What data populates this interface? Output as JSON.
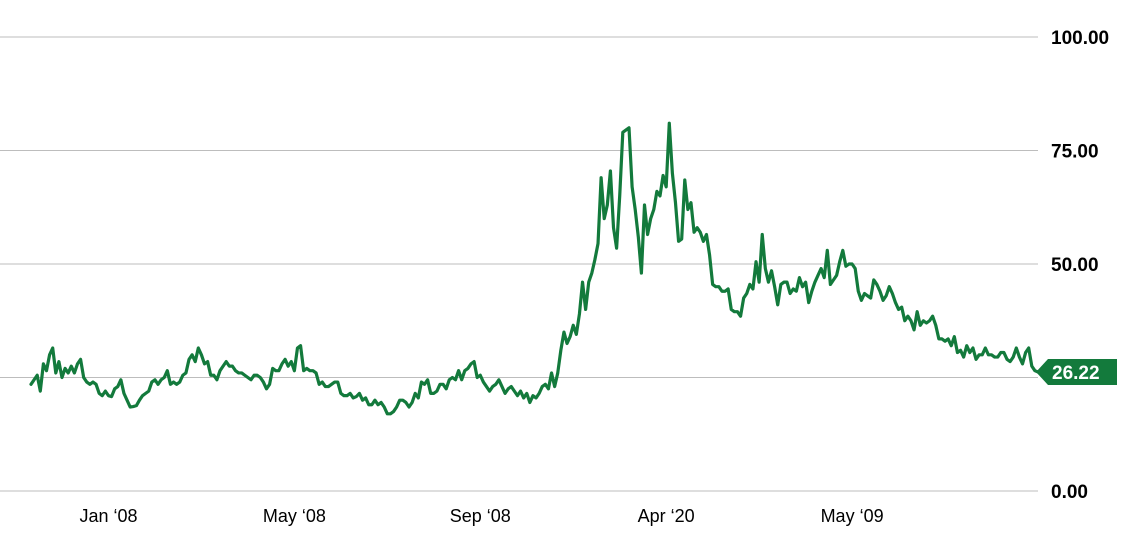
{
  "chart_data": {
    "type": "line",
    "title": "",
    "xlabel": "",
    "ylabel": "",
    "ylim": [
      0,
      100
    ],
    "grid": true,
    "y_ticks": [
      {
        "value": 100,
        "label": "100.00"
      },
      {
        "value": 75,
        "label": "75.00"
      },
      {
        "value": 50,
        "label": "50.00"
      },
      {
        "value": 0,
        "label": "0.00"
      }
    ],
    "x_ticks": [
      {
        "index": 25,
        "label": "Jan ‘08"
      },
      {
        "index": 85,
        "label": "May ‘08"
      },
      {
        "index": 145,
        "label": "Sep ‘08"
      },
      {
        "index": 205,
        "label": "Apr ‘20"
      },
      {
        "index": 265,
        "label": "May ‘09"
      }
    ],
    "last_value_label": "26.22",
    "colors": {
      "line": "#137a3c",
      "grid": "#bdbdbd",
      "badge": "#137a3c"
    },
    "series": [
      {
        "values": [
          23.5,
          24.5,
          25.5,
          22,
          28,
          26.5,
          30,
          31.5,
          26,
          28.5,
          25,
          27,
          26,
          27.5,
          26,
          28,
          29,
          25,
          24,
          23.5,
          24,
          23.5,
          21.5,
          21,
          22,
          21,
          20.8,
          22.5,
          23,
          24.5,
          21.5,
          20,
          18.5,
          18.6,
          18.8,
          20,
          21,
          21.5,
          22,
          24,
          24.5,
          23.5,
          24.5,
          25,
          26.5,
          23.5,
          24,
          23.5,
          24,
          25.5,
          26,
          29,
          30,
          28.5,
          31.5,
          30,
          28,
          28.5,
          25.5,
          25.5,
          24.5,
          26.5,
          27.5,
          28.5,
          27.5,
          27.5,
          26.5,
          26,
          26,
          25.5,
          25,
          24.5,
          25.5,
          25.5,
          25,
          24,
          22.5,
          23.5,
          27,
          26.5,
          26.5,
          28,
          29,
          27.5,
          28.5,
          26.5,
          31.5,
          32,
          26.5,
          27,
          26.5,
          26.5,
          26,
          23.5,
          24,
          23,
          23,
          23.5,
          24,
          24,
          21.5,
          21,
          21,
          21.5,
          20.5,
          20.8,
          21.5,
          20,
          20.5,
          19,
          19,
          20,
          19,
          19.5,
          18.5,
          17,
          17,
          17.5,
          18.5,
          20,
          20,
          19.5,
          18.5,
          19.5,
          21.5,
          20.5,
          24,
          23.5,
          24.5,
          21.5,
          21.5,
          22,
          23.5,
          23.5,
          22.5,
          24.5,
          25,
          24.5,
          26.5,
          24.5,
          26.5,
          27,
          28,
          28.5,
          25,
          25.5,
          24,
          23,
          22,
          23,
          23.5,
          24.5,
          23,
          21.5,
          22.5,
          23,
          22,
          21,
          22,
          20.5,
          21.5,
          19.5,
          21,
          20.5,
          21.5,
          23,
          23.5,
          22.5,
          26,
          23,
          26,
          31,
          35,
          32.5,
          34,
          36.5,
          34.5,
          39,
          46,
          40,
          46,
          48,
          51,
          54.5,
          69,
          60,
          63,
          70.5,
          58,
          53.5,
          65,
          79,
          79.5,
          80,
          67,
          62,
          56,
          48,
          63,
          56.5,
          60,
          62,
          66,
          65,
          69.5,
          67,
          81,
          70,
          63.5,
          55,
          55.5,
          68.5,
          62,
          63.5,
          57,
          58,
          57,
          55,
          56.5,
          52,
          45.5,
          45,
          45,
          44,
          44,
          44.5,
          40,
          39.5,
          39.5,
          38.5,
          42.5,
          43.5,
          45.5,
          44.5,
          50.5,
          46,
          56.5,
          49,
          46,
          48.5,
          45,
          41,
          45.5,
          46,
          46,
          43.5,
          44.5,
          44,
          47,
          45,
          46,
          41.5,
          44,
          46,
          47.5,
          49,
          47,
          53,
          45.5,
          46.5,
          47.5,
          50.5,
          53,
          49.5,
          50,
          50,
          49,
          44,
          42,
          43.5,
          43,
          42.5,
          46.5,
          45.5,
          44,
          42,
          43,
          45,
          43.5,
          41.5,
          40,
          40.5,
          37.5,
          38.5,
          37.5,
          35.5,
          39.5,
          36.5,
          37.5,
          37,
          37.5,
          38.5,
          36.5,
          33.5,
          33.5,
          33,
          33.5,
          32,
          34,
          30.5,
          31,
          29.5,
          32,
          30.5,
          31.5,
          29,
          30,
          30,
          31.5,
          30,
          30,
          29.5,
          29.5,
          30.5,
          30.5,
          29,
          28.5,
          29.5,
          31.5,
          29.5,
          28,
          30.5,
          31.5,
          27.5,
          26.5,
          26.22
        ]
      }
    ]
  }
}
